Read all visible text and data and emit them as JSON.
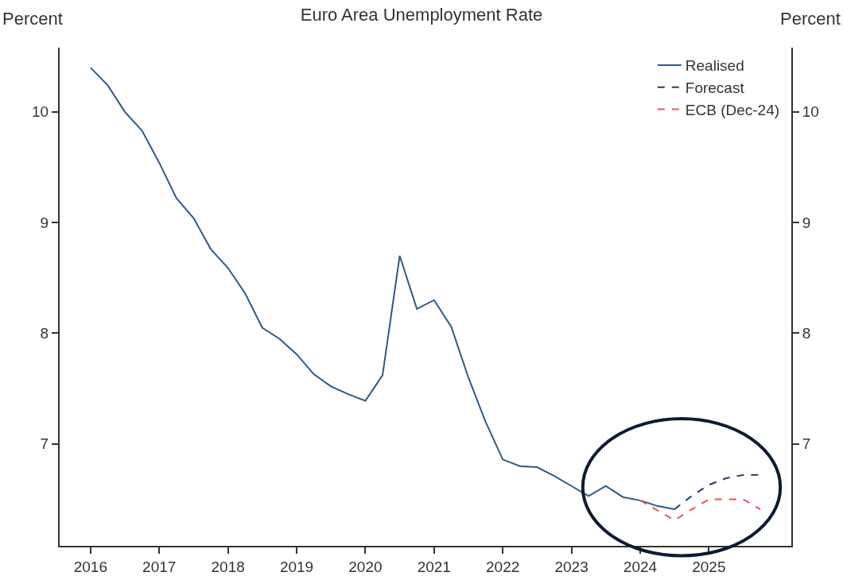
{
  "chart_data": {
    "type": "line",
    "title": "Euro Area Unemployment Rate",
    "ylabel": "Percent",
    "y2label": "Percent",
    "xlim": [
      2015.55,
      2026.2
    ],
    "xticks": [
      2016,
      2017,
      2018,
      2019,
      2020,
      2021,
      2022,
      2023,
      2024,
      2025
    ],
    "ylim": [
      6.08,
      10.58
    ],
    "yticks": [
      7,
      8,
      9,
      10
    ],
    "y2lim": [
      6.08,
      10.58
    ],
    "y2ticks": [
      7,
      8,
      9,
      10
    ],
    "grid": false,
    "legend": "top right",
    "marker": "none",
    "series": [
      {
        "name": "Realised",
        "color": "#2e5a87",
        "line_style": "solid",
        "x": [
          2016,
          2016.25,
          2016.5,
          2016.75,
          2017,
          2017.25,
          2017.5,
          2017.75,
          2018,
          2018.25,
          2018.5,
          2018.75,
          2019,
          2019.25,
          2019.5,
          2019.75,
          2020,
          2020.25,
          2020.5,
          2020.75,
          2021,
          2021.25,
          2021.5,
          2021.75,
          2022,
          2022.25,
          2022.5,
          2022.75,
          2023,
          2023.25,
          2023.5,
          2023.75,
          2024,
          2024.25,
          2024.5
        ],
        "values": [
          10.4,
          10.24,
          10.0,
          9.83,
          9.54,
          9.22,
          9.04,
          8.76,
          8.59,
          8.36,
          8.05,
          7.95,
          7.81,
          7.63,
          7.52,
          7.45,
          7.39,
          7.62,
          8.7,
          8.22,
          8.3,
          8.06,
          7.6,
          7.2,
          6.86,
          6.8,
          6.79,
          6.71,
          6.62,
          6.53,
          6.62,
          6.52,
          6.49,
          6.44,
          6.41
        ]
      },
      {
        "name": "Forecast",
        "color": "#1f3f66",
        "line_style": "dashed",
        "x": [
          2024.5,
          2024.75,
          2025,
          2025.25,
          2025.5,
          2025.75
        ],
        "values": [
          6.41,
          6.53,
          6.63,
          6.69,
          6.72,
          6.72
        ]
      },
      {
        "name": "ECB (Dec-24)",
        "color": "#e05a5a",
        "line_style": "dashed",
        "x": [
          2024,
          2024.25,
          2024.5,
          2024.75,
          2025,
          2025.25,
          2025.5,
          2025.75
        ],
        "values": [
          6.49,
          6.4,
          6.31,
          6.41,
          6.5,
          6.5,
          6.5,
          6.41
        ]
      }
    ]
  }
}
